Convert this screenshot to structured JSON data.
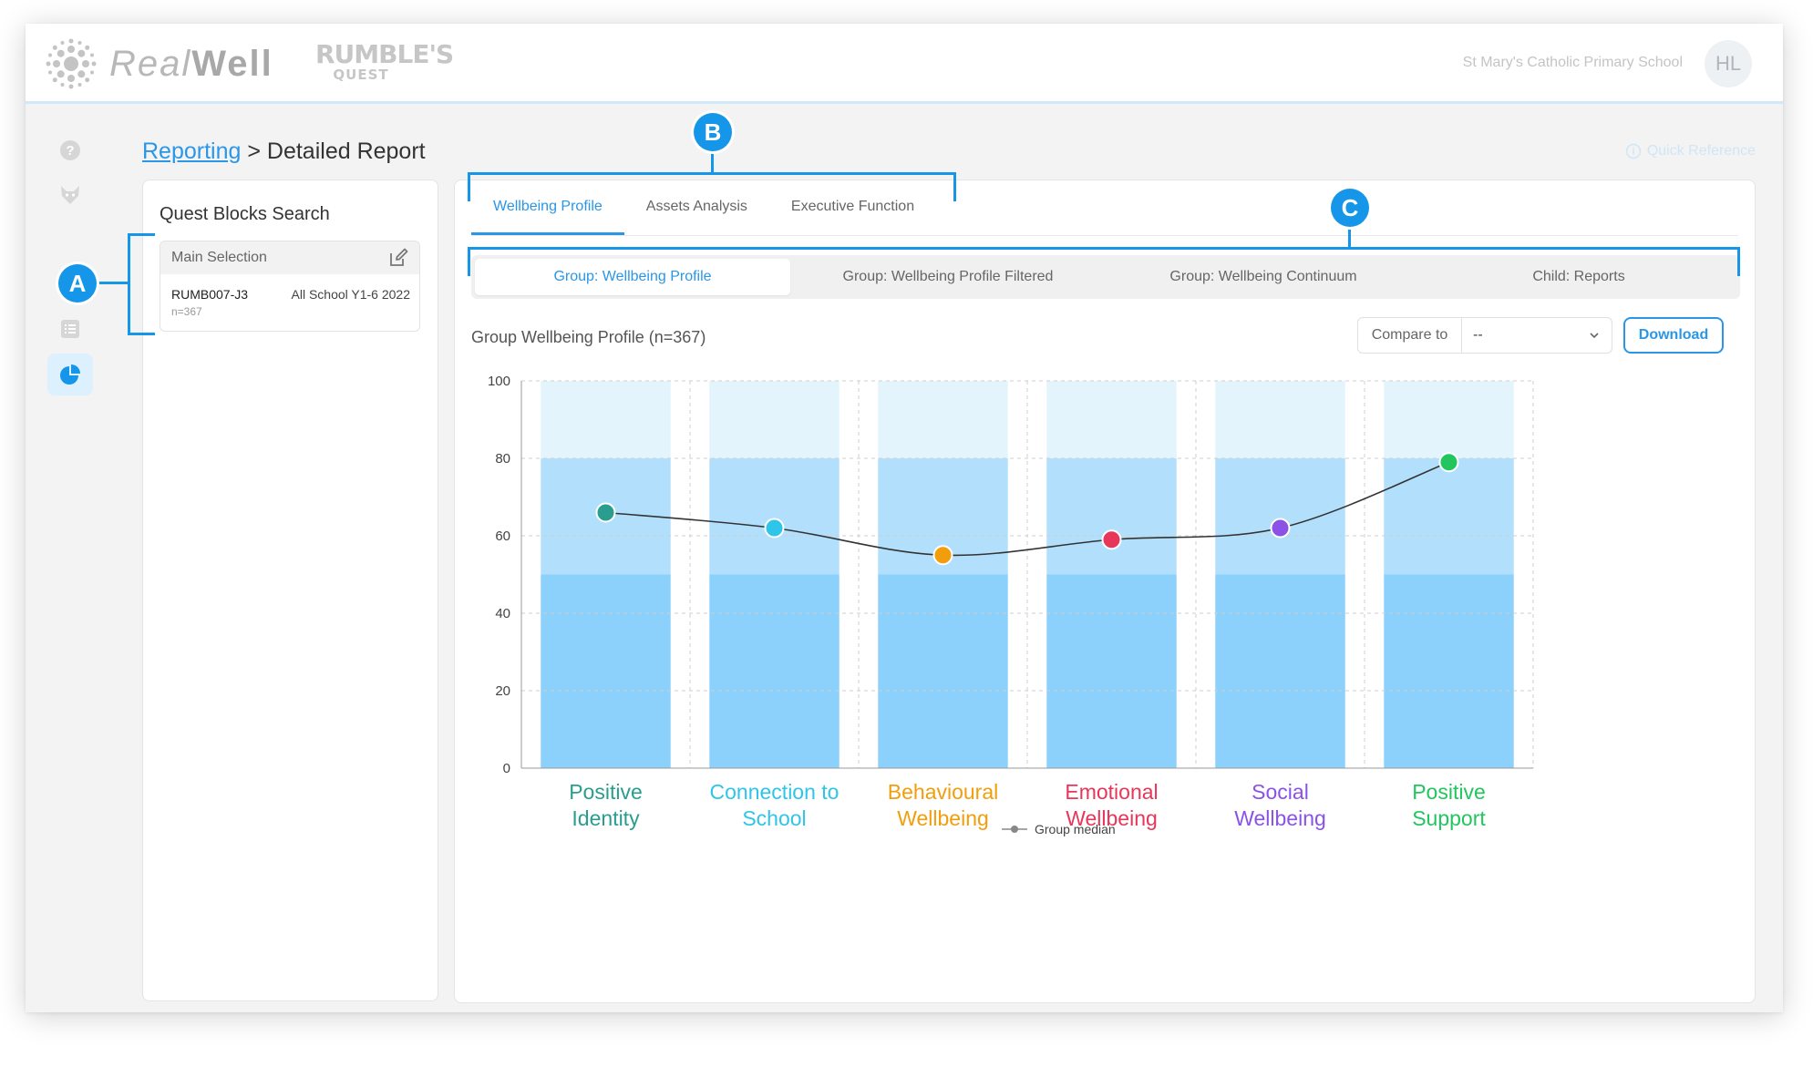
{
  "header": {
    "logo_text_light": "Real",
    "logo_text_bold": "Well",
    "rumbles_line1": "RUMBLE'S",
    "rumbles_line2": "QUEST",
    "school_name": "St Mary's Catholic Primary School",
    "avatar_initials": "HL"
  },
  "sidebar": {
    "icons": [
      "help-icon",
      "fox-icon",
      "dashboard-icon",
      "list-icon",
      "pie-chart-icon"
    ],
    "active": "pie-chart-icon"
  },
  "breadcrumb": {
    "link": "Reporting",
    "current": "> Detailed Report"
  },
  "quick_reference": "Quick Reference",
  "quest_panel": {
    "title": "Quest Blocks Search",
    "selection": {
      "header": "Main Selection",
      "code": "RUMB007-J3",
      "description": "All School Y1-6 2022",
      "count": "n=367"
    }
  },
  "main_tabs": [
    {
      "label": "Wellbeing Profile",
      "active": true
    },
    {
      "label": "Assets Analysis",
      "active": false
    },
    {
      "label": "Executive Function",
      "active": false
    }
  ],
  "sub_tabs": [
    {
      "label": "Group: Wellbeing Profile",
      "active": true
    },
    {
      "label": "Group: Wellbeing Profile Filtered",
      "active": false
    },
    {
      "label": "Group: Wellbeing Continuum",
      "active": false
    },
    {
      "label": "Child: Reports",
      "active": false
    }
  ],
  "chart_toolbar": {
    "title": "Group Wellbeing Profile (n=367)",
    "compare_label": "Compare to",
    "compare_value": "--",
    "download_label": "Download"
  },
  "chart_data": {
    "type": "line",
    "title": "Group Wellbeing Profile (n=367)",
    "xlabel": "",
    "ylabel": "",
    "ylim": [
      0,
      100
    ],
    "yticks": [
      0,
      20,
      40,
      60,
      80,
      100
    ],
    "grid": true,
    "background_bands": [
      {
        "from": 0,
        "to": 50,
        "color": "#8bd1fb"
      },
      {
        "from": 50,
        "to": 80,
        "color": "#b2e0fc"
      },
      {
        "from": 80,
        "to": 100,
        "color": "#e3f4fd"
      }
    ],
    "categories": [
      {
        "line1": "Positive",
        "line2": "Identity",
        "color": "#2a9d8f"
      },
      {
        "line1": "Connection to",
        "line2": "School",
        "color": "#2ec5e8"
      },
      {
        "line1": "Behavioural",
        "line2": "Wellbeing",
        "color": "#f29e0c"
      },
      {
        "line1": "Emotional",
        "line2": "Wellbeing",
        "color": "#e8365a"
      },
      {
        "line1": "Social",
        "line2": "Wellbeing",
        "color": "#8a52e6"
      },
      {
        "line1": "Positive",
        "line2": "Support",
        "color": "#22c55e"
      }
    ],
    "series": [
      {
        "name": "Group median",
        "values": [
          66,
          62,
          55,
          59,
          62,
          79
        ]
      }
    ],
    "legend_position": "bottom-center"
  },
  "annotations": {
    "a": "A",
    "b": "B",
    "c": "C"
  },
  "colors": {
    "accent": "#2a96e8",
    "annotation": "#1596e8"
  }
}
